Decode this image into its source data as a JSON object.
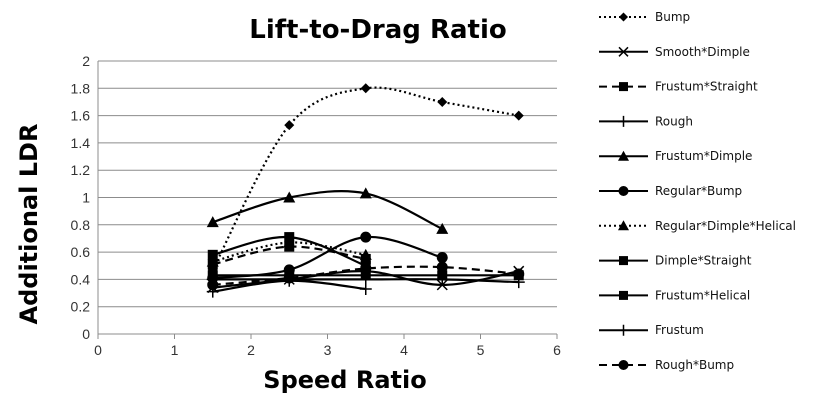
{
  "chart_data": {
    "type": "line",
    "title": "Lift-to-Drag Ratio",
    "xlabel": "Speed Ratio",
    "ylabel": "Additional LDR",
    "xlim": [
      0,
      6
    ],
    "ylim": [
      0,
      2
    ],
    "xticks": [
      "0",
      "1",
      "2",
      "3",
      "4",
      "5",
      "6"
    ],
    "yticks": [
      "0",
      "0.2",
      "0.4",
      "0.6",
      "0.8",
      "1",
      "1.2",
      "1.4",
      "1.6",
      "1.8",
      "2"
    ],
    "grid": "horizontal",
    "legend_position": "right",
    "line_color": "#000000",
    "series": [
      {
        "name": "Bump",
        "style": "dotted",
        "marker": "diamond",
        "x": [
          1.5,
          2.5,
          3.5,
          4.5,
          5.5
        ],
        "y": [
          0.47,
          1.53,
          1.8,
          1.7,
          1.6
        ]
      },
      {
        "name": "Smooth*Dimple",
        "style": "solid",
        "marker": "x",
        "x": [
          1.5,
          2.5,
          3.5,
          4.5,
          5.5
        ],
        "y": [
          0.34,
          0.4,
          0.46,
          0.36,
          0.46
        ]
      },
      {
        "name": "Frustum*Straight",
        "style": "dashed",
        "marker": "square",
        "x": [
          1.5,
          2.5,
          3.5
        ],
        "y": [
          0.51,
          0.64,
          0.55
        ]
      },
      {
        "name": "Rough",
        "style": "solid",
        "marker": "plus",
        "x": [
          1.5,
          2.5,
          3.5
        ],
        "y": [
          0.31,
          0.39,
          0.33
        ]
      },
      {
        "name": "Frustum*Dimple",
        "style": "solid",
        "marker": "triangle",
        "x": [
          1.5,
          2.5,
          3.5,
          4.5
        ],
        "y": [
          0.82,
          1.0,
          1.03,
          0.77
        ]
      },
      {
        "name": "Regular*Bump",
        "style": "solid",
        "marker": "circle",
        "x": [
          1.5,
          2.5,
          3.5,
          4.5
        ],
        "y": [
          0.41,
          0.47,
          0.71,
          0.56
        ]
      },
      {
        "name": "Regular*Dimple*Helical",
        "style": "dotted",
        "marker": "triangle",
        "x": [
          1.5,
          2.5,
          3.5
        ],
        "y": [
          0.53,
          0.67,
          0.58
        ]
      },
      {
        "name": "Dimple*Straight",
        "style": "solid",
        "marker": "square",
        "x": [
          1.5,
          2.5,
          3.5,
          4.5,
          5.5
        ],
        "y": [
          0.43,
          0.43,
          0.43,
          0.43,
          0.43
        ]
      },
      {
        "name": "Frustum*Helical",
        "style": "solid",
        "marker": "square",
        "x": [
          1.5,
          2.5,
          3.5
        ],
        "y": [
          0.58,
          0.71,
          0.5
        ]
      },
      {
        "name": "Frustum",
        "style": "solid",
        "marker": "plus",
        "x": [
          1.5,
          2.5,
          3.5,
          4.5,
          5.5
        ],
        "y": [
          0.4,
          0.4,
          0.4,
          0.4,
          0.38
        ]
      },
      {
        "name": "Rough*Bump",
        "style": "dashed",
        "marker": "circle",
        "x": [
          1.5,
          2.5,
          3.5,
          4.5,
          5.5
        ],
        "y": [
          0.36,
          0.41,
          0.48,
          0.49,
          0.44
        ]
      }
    ]
  }
}
